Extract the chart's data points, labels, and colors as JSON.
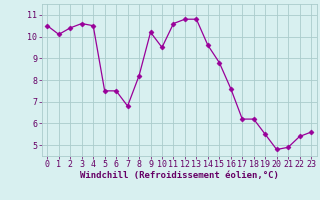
{
  "x": [
    0,
    1,
    2,
    3,
    4,
    5,
    6,
    7,
    8,
    9,
    10,
    11,
    12,
    13,
    14,
    15,
    16,
    17,
    18,
    19,
    20,
    21,
    22,
    23
  ],
  "y": [
    10.5,
    10.1,
    10.4,
    10.6,
    10.5,
    7.5,
    7.5,
    6.8,
    8.2,
    10.2,
    9.5,
    10.6,
    10.8,
    10.8,
    9.6,
    8.8,
    7.6,
    6.2,
    6.2,
    5.5,
    4.8,
    4.9,
    5.4,
    5.6
  ],
  "line_color": "#990099",
  "marker": "D",
  "marker_size": 2.5,
  "bg_color": "#d8f0f0",
  "grid_color": "#aacccc",
  "xlabel": "Windchill (Refroidissement éolien,°C)",
  "xlabel_color": "#660066",
  "xlabel_fontsize": 6.5,
  "tick_color": "#660066",
  "tick_fontsize": 6.0,
  "ylim": [
    4.5,
    11.5
  ],
  "xlim": [
    -0.5,
    23.5
  ],
  "yticks": [
    5,
    6,
    7,
    8,
    9,
    10,
    11
  ],
  "xticks": [
    0,
    1,
    2,
    3,
    4,
    5,
    6,
    7,
    8,
    9,
    10,
    11,
    12,
    13,
    14,
    15,
    16,
    17,
    18,
    19,
    20,
    21,
    22,
    23
  ]
}
